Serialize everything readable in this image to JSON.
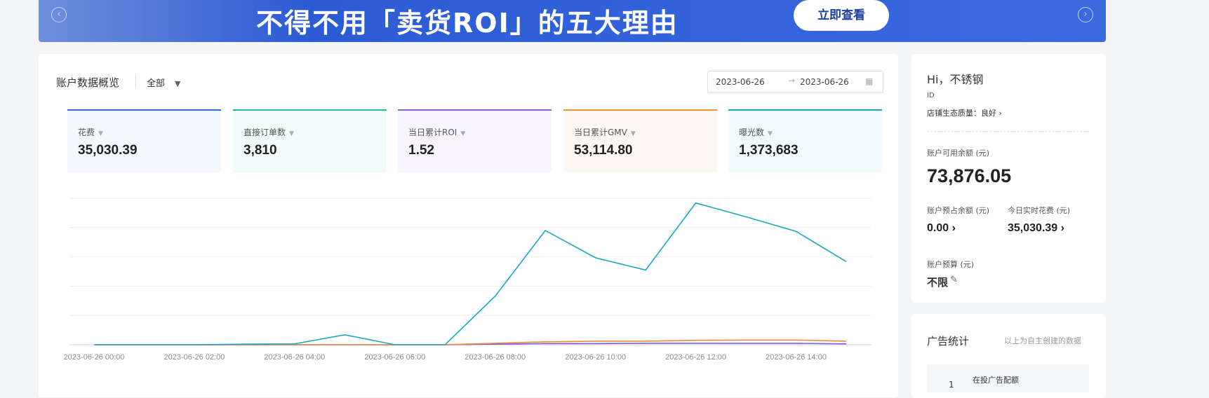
{
  "banner": {
    "headline": "不得不用「卖货ROI」的五大理由",
    "button": "立即查看"
  },
  "overview": {
    "title": "账户数据概览",
    "filter": "全部",
    "date_start": "2023-06-26",
    "date_end": "2023-06-26",
    "metrics": [
      {
        "label": "花费",
        "value": "35,030.39"
      },
      {
        "label": "直接订单数",
        "value": "3,810"
      },
      {
        "label": "当日累计ROI",
        "value": "1.52"
      },
      {
        "label": "当日累计GMV",
        "value": "53,114.80"
      },
      {
        "label": "曝光数",
        "value": "1,373,683"
      }
    ]
  },
  "chart_data": {
    "type": "line",
    "categories": [
      "2023-06-26 00:00",
      null,
      "2023-06-26 02:00",
      null,
      "2023-06-26 04:00",
      null,
      "2023-06-26 06:00",
      null,
      "2023-06-26 08:00",
      null,
      "2023-06-26 10:00",
      null,
      "2023-06-26 12:00",
      null,
      "2023-06-26 14:00",
      null
    ],
    "series": [
      {
        "color": "#1aa6c0",
        "values": [
          0,
          0,
          0,
          0.02,
          0.03,
          0.34,
          0,
          0,
          1.66,
          3.9,
          2.97,
          2.55,
          4.84,
          4.37,
          3.87,
          2.84
        ]
      },
      {
        "color": "#f0883a",
        "values": [
          0,
          0,
          0,
          0,
          0,
          0,
          0,
          0,
          0.05,
          0.1,
          0.12,
          0.12,
          0.15,
          0.16,
          0.16,
          0.12
        ]
      },
      {
        "color": "#7b5ce0",
        "values": [
          0,
          0,
          0,
          0,
          0,
          0,
          0,
          0,
          0.02,
          0.04,
          0.04,
          0.05,
          0.05,
          0.05,
          0.05,
          0.03
        ]
      }
    ],
    "ylim": [
      0,
      5
    ],
    "grid_lines": [
      0,
      1,
      2,
      3,
      4,
      5
    ]
  },
  "account": {
    "greeting": "Hi，不锈钢",
    "id_label": "ID",
    "quality": "店铺生态质量：良好 ›",
    "balance_label": "账户可用余额 (元)",
    "balance": "73,876.05",
    "reserved_label": "账户预占余额 (元)",
    "reserved": "0.00 ›",
    "spend_label": "今日实时花费 (元)",
    "spend": "35,030.39 ›",
    "budget_label": "账户预算 (元)",
    "budget": "不限"
  },
  "stats": {
    "title": "广告统计",
    "note": "以上为自主创建的数据",
    "index": "1",
    "quota_label": "在投广告配额"
  }
}
